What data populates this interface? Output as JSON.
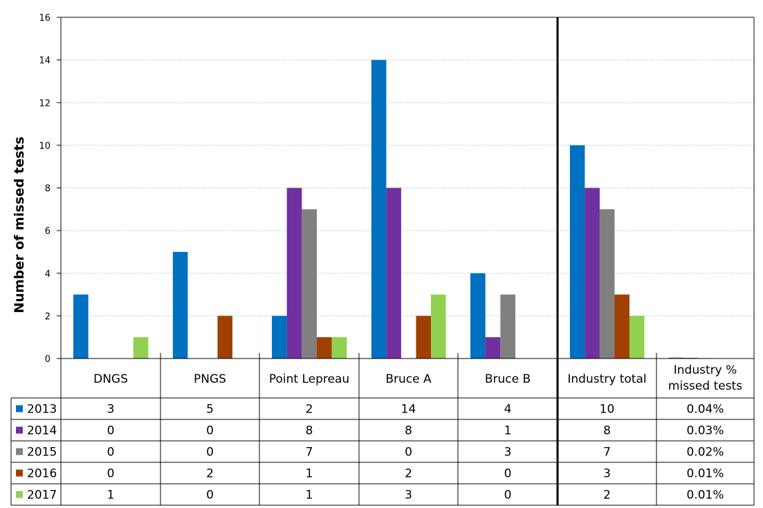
{
  "chart_data": {
    "type": "bar",
    "ylabel": "Number of missed tests",
    "ylim": [
      0,
      16
    ],
    "yticks": [
      0,
      2,
      4,
      6,
      8,
      10,
      12,
      14,
      16
    ],
    "ytick_labels": [
      "0",
      "2",
      "4",
      "6",
      "8",
      "10",
      "12",
      "14",
      "16"
    ],
    "grid": true,
    "legend_placement": "data-table-left",
    "categories": [
      "DNGS",
      "PNGS",
      "Point Lepreau",
      "Bruce A",
      "Bruce B",
      "Industry total",
      "Industry % missed tests"
    ],
    "series": [
      {
        "name": "2013",
        "color": "#0070C0",
        "values": [
          3,
          5,
          2,
          14,
          4,
          10,
          0.04
        ],
        "labels": [
          "3",
          "5",
          "2",
          "14",
          "4",
          "10",
          "0.04%"
        ]
      },
      {
        "name": "2014",
        "color": "#7030A0",
        "values": [
          0,
          0,
          8,
          8,
          1,
          8,
          0.03
        ],
        "labels": [
          "0",
          "0",
          "8",
          "8",
          "1",
          "8",
          "0.03%"
        ]
      },
      {
        "name": "2015",
        "color": "#808080",
        "values": [
          0,
          0,
          7,
          0,
          3,
          7,
          0.02
        ],
        "labels": [
          "0",
          "0",
          "7",
          "0",
          "3",
          "7",
          "0.02%"
        ]
      },
      {
        "name": "2016",
        "color": "#A04000",
        "values": [
          0,
          2,
          1,
          2,
          0,
          3,
          0.01
        ],
        "labels": [
          "0",
          "2",
          "1",
          "2",
          "0",
          "3",
          "0.01%"
        ]
      },
      {
        "name": "2017",
        "color": "#92D050",
        "values": [
          1,
          0,
          1,
          3,
          0,
          2,
          0.01
        ],
        "labels": [
          "1",
          "0",
          "1",
          "3",
          "0",
          "2",
          "0.01%"
        ]
      }
    ]
  }
}
